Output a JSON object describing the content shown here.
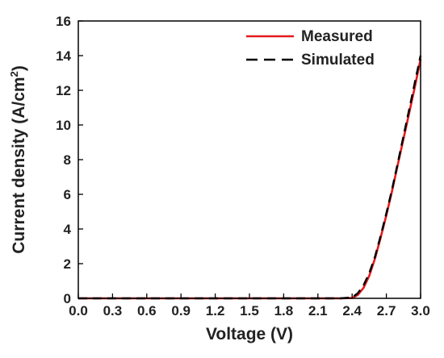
{
  "chart_data": {
    "type": "line",
    "xlabel": "Voltage (V)",
    "ylabel": {
      "main": "Current density (A/cm",
      "sup": "2",
      "close": ")"
    },
    "xlim": [
      0.0,
      3.0
    ],
    "ylim": [
      0,
      16
    ],
    "x_ticks": [
      "0.0",
      "0.3",
      "0.6",
      "0.9",
      "1.2",
      "1.5",
      "1.8",
      "2.1",
      "2.4",
      "2.7",
      "3.0"
    ],
    "y_ticks": [
      "0",
      "2",
      "4",
      "6",
      "8",
      "10",
      "12",
      "14",
      "16"
    ],
    "grid": false,
    "legend": "top-right",
    "series": [
      {
        "name": "Measured",
        "color": "#e41a1c",
        "style": "solid",
        "x": [
          0.0,
          2.3,
          2.4,
          2.45,
          2.5,
          2.55,
          2.6,
          2.65,
          2.7,
          2.75,
          2.8,
          2.85,
          2.9,
          2.95,
          3.0
        ],
        "y": [
          0,
          0,
          0.02,
          0.2,
          0.6,
          1.3,
          2.3,
          3.5,
          4.8,
          6.2,
          7.7,
          9.2,
          10.7,
          12.2,
          13.8
        ]
      },
      {
        "name": "Simulated",
        "color": "#000000",
        "style": "dashed",
        "x": [
          0.0,
          2.3,
          2.4,
          2.45,
          2.5,
          2.55,
          2.6,
          2.65,
          2.7,
          2.75,
          2.8,
          2.85,
          2.9,
          2.95,
          3.0
        ],
        "y": [
          0,
          0,
          0.05,
          0.3,
          0.75,
          1.45,
          2.4,
          3.6,
          4.9,
          6.3,
          7.8,
          9.35,
          10.9,
          12.45,
          14.0
        ]
      }
    ]
  }
}
